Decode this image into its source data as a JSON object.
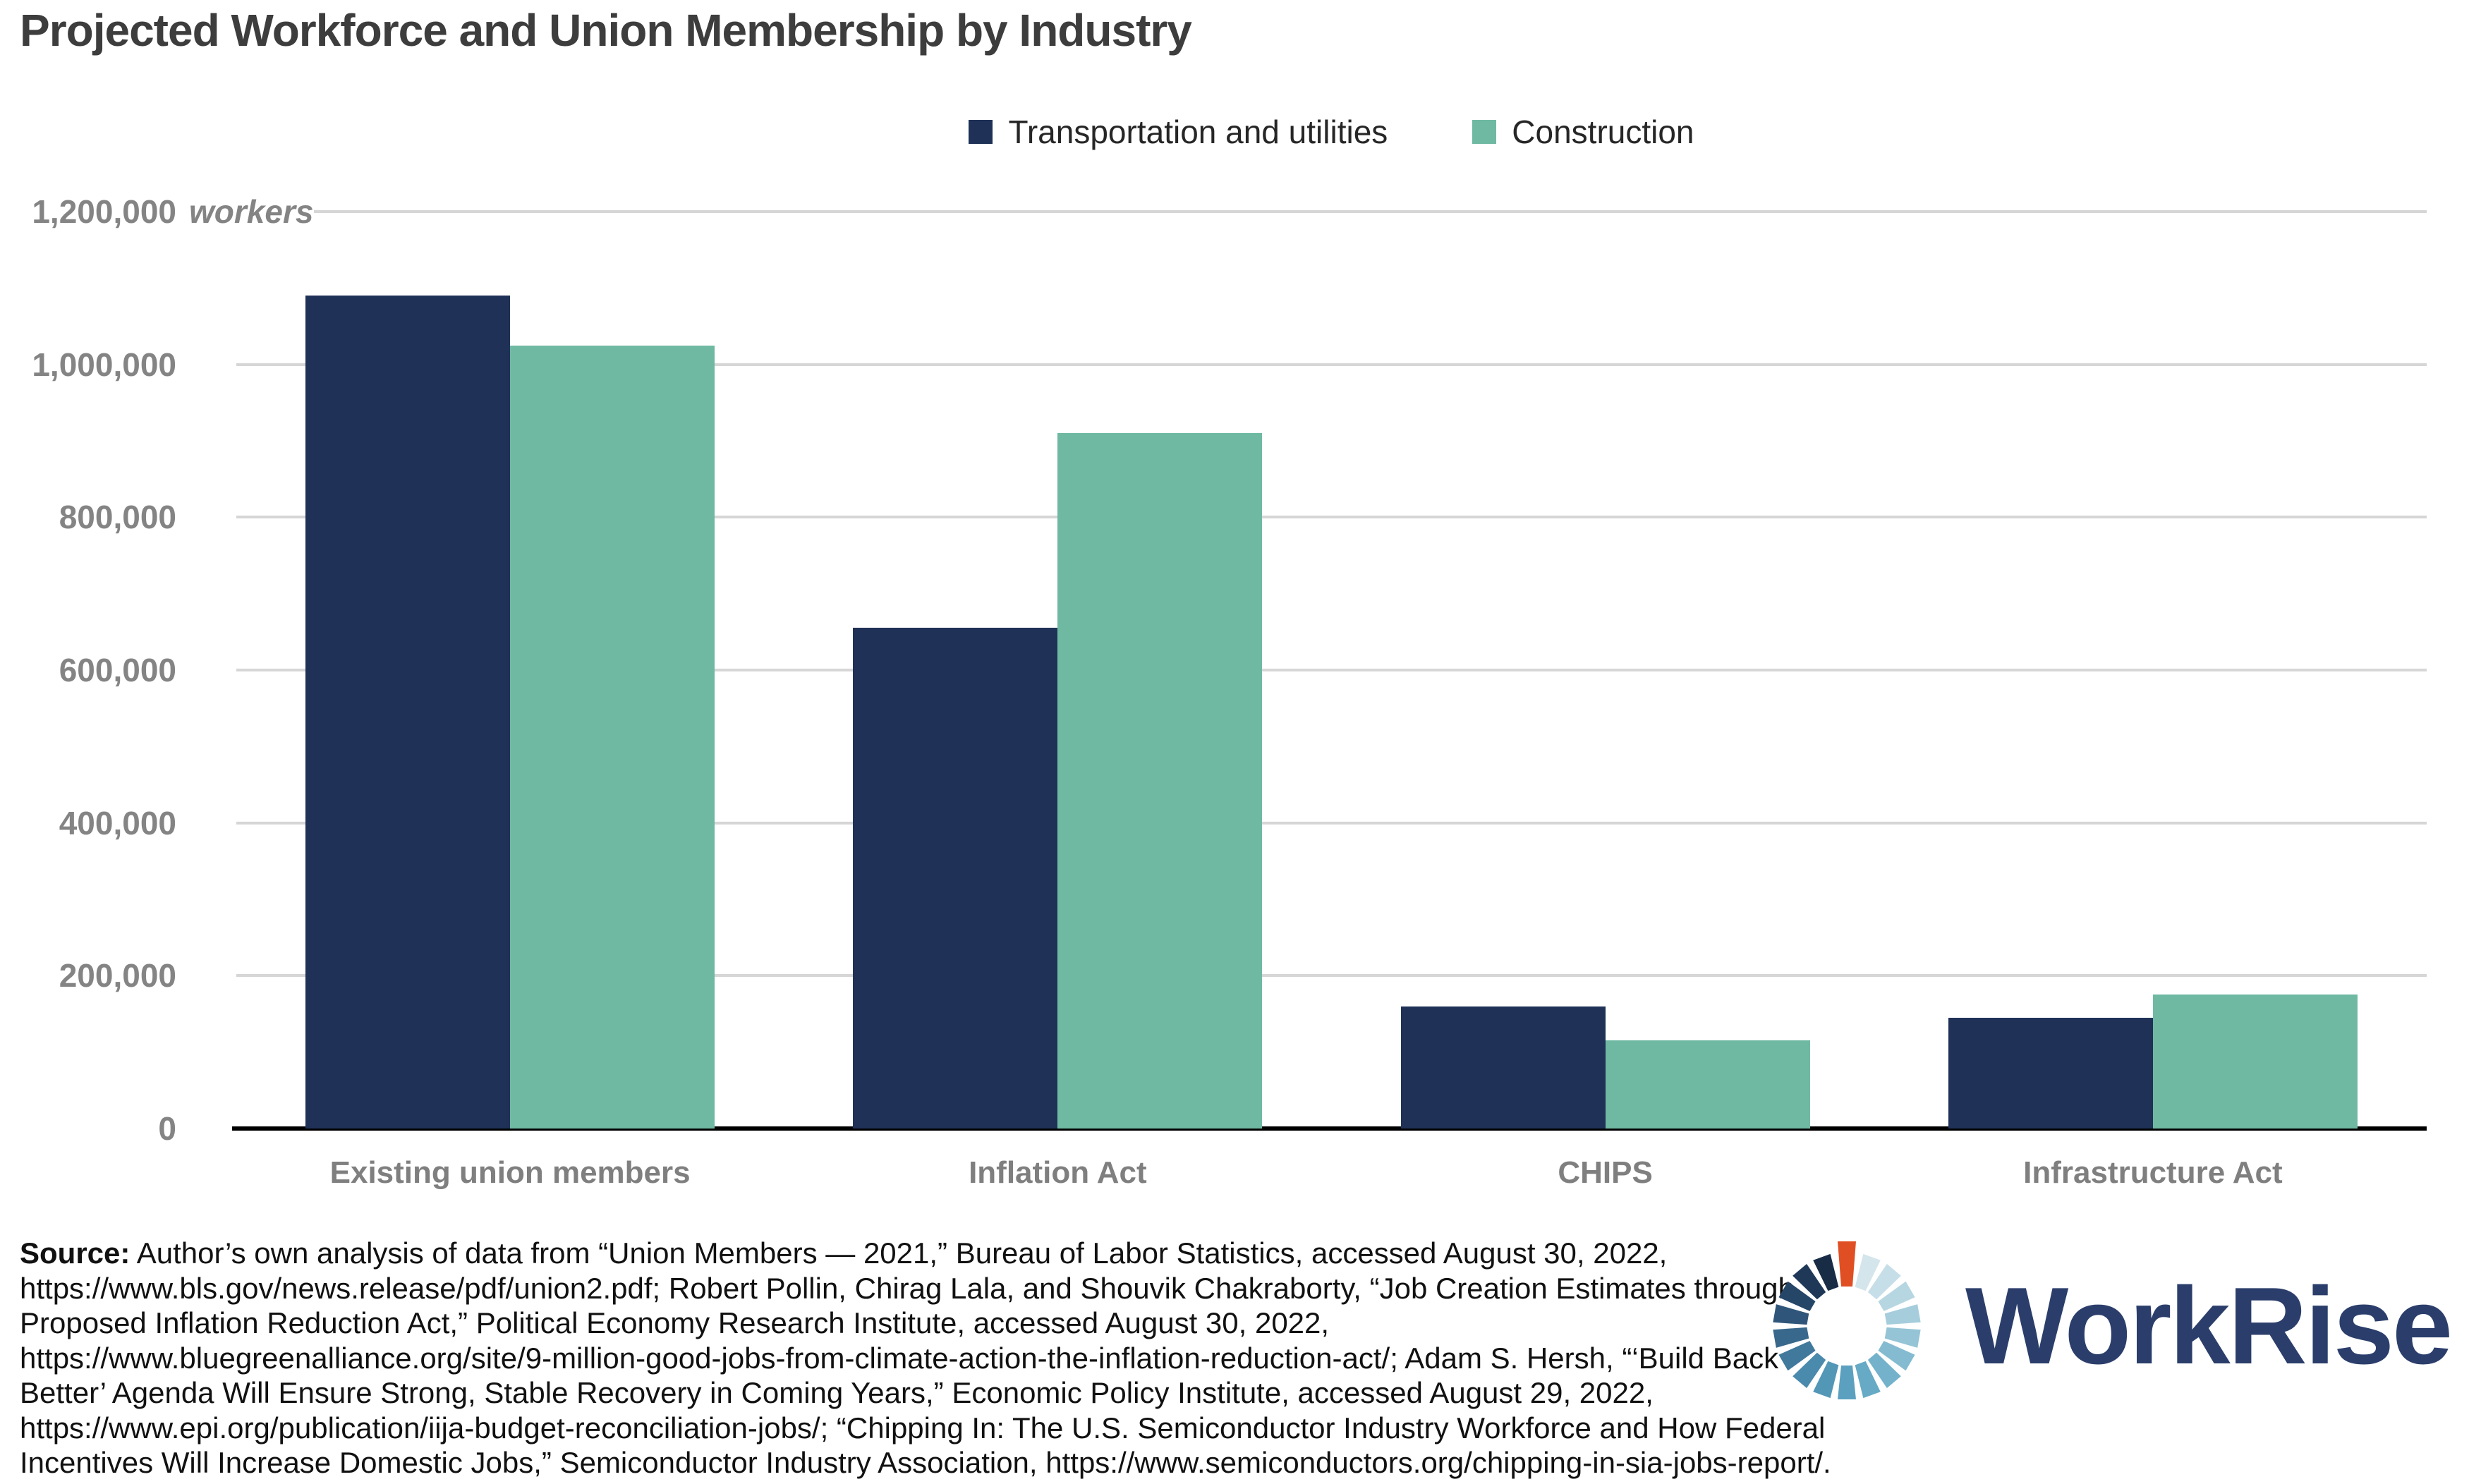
{
  "title": "Projected Workforce and Union Membership by Industry",
  "chart_data": {
    "type": "bar",
    "title": "Projected Workforce and Union Membership by Industry",
    "categories": [
      "Existing union members",
      "Inflation Act",
      "CHIPS",
      "Infrastructure Act"
    ],
    "series": [
      {
        "name": "Transportation and utilities",
        "color": "#1F3157",
        "values": [
          1090000,
          655000,
          160000,
          145000
        ]
      },
      {
        "name": "Construction",
        "color": "#6FB9A3",
        "values": [
          1025000,
          910000,
          115000,
          175000
        ]
      }
    ],
    "ylabel": "workers",
    "ylim": [
      0,
      1200000
    ],
    "ytick_interval": 200000,
    "ytick_labels": [
      "0",
      "200,000",
      "400,000",
      "600,000",
      "800,000",
      "1,000,000",
      "1,200,000"
    ],
    "ytick_unit_label": "workers",
    "grid": "horizontal",
    "legend_position": "top-center"
  },
  "source": {
    "label": "Source:",
    "lines": [
      "Author’s own analysis of data from “Union Members — 2021,” Bureau of Labor Statistics, accessed August 30, 2022,",
      "https://www.bls.gov/news.release/pdf/union2.pdf; Robert Pollin, Chirag Lala, and Shouvik Chakraborty, “Job Creation Estimates through",
      "Proposed Inflation Reduction Act,” Political Economy Research Institute, accessed August 30, 2022,",
      "https://www.bluegreenalliance.org/site/9-million-good-jobs-from-climate-action-the-inflation-reduction-act/; Adam S. Hersh, “‘Build Back",
      "Better’ Agenda Will Ensure Strong, Stable Recovery in Coming Years,” Economic Policy Institute, accessed August 29, 2022,",
      "https://www.epi.org/publication/iija-budget-reconciliation-jobs/; “Chipping In: The U.S. Semiconductor Industry Workforce and How Federal",
      "Incentives Will Increase Domestic Jobs,” Semiconductor Industry Association, https://www.semiconductors.org/chipping-in-sia-jobs-report/."
    ]
  },
  "logo": {
    "text": "WorkRise",
    "text_color": "#2B3E6B",
    "spinner_colors": [
      "#E04F23",
      "#D4E5EC",
      "#C6DEE8",
      "#B6D6E2",
      "#A6CDDC",
      "#95C4D6",
      "#84BBD1",
      "#74B2CB",
      "#66AAC5",
      "#5BA1BF",
      "#5397B7",
      "#4A8AAC",
      "#41799D",
      "#38688C",
      "#2F567A",
      "#264668",
      "#1F3857",
      "#182C46"
    ]
  },
  "colors": {
    "title_text": "#3D3D3D",
    "axis_text": "#848484",
    "gridline": "#D6D6D6",
    "axis_line": "#000000",
    "transportation_and_utilities": "#1F3157",
    "construction": "#6FB9A3"
  }
}
